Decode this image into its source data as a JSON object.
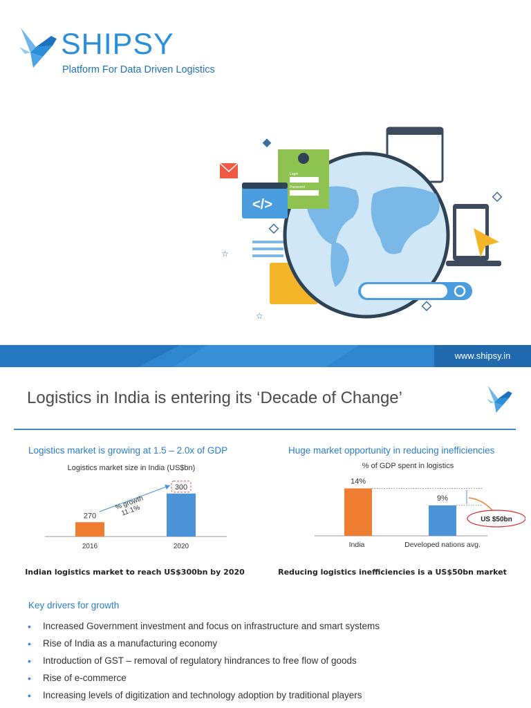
{
  "header": {
    "brand": "SHIPSY",
    "tagline": "Platform For Data Driven Logistics",
    "hero_icon": "world-map-logistics-illustration",
    "login_label": "Login",
    "password_label": "Password"
  },
  "banner": {
    "url": "www.shipsy.in"
  },
  "slide": {
    "title": "Logistics in India is entering its ‘Decade of Change’"
  },
  "left_panel": {
    "heading": "Logistics market is growing at 1.5 – 2.0x of GDP",
    "subtitle": "Logistics market size in India (US$bn)",
    "growth_label": "% growth",
    "growth_value": "11.1%",
    "caption": "Indian logistics market to reach US$300bn by 2020"
  },
  "right_panel": {
    "heading": "Huge market opportunity in reducing inefficiencies",
    "subtitle": "% of GDP spent in logistics",
    "callout": "US $50bn",
    "caption": "Reducing logistics inefficiencies is a US$50bn market"
  },
  "chart_data": [
    {
      "type": "bar",
      "categories": [
        "2016",
        "2020"
      ],
      "values": [
        270,
        300
      ],
      "value_labels": [
        "270",
        "300"
      ],
      "color": "#ee7d31",
      "colors": [
        "#ee7d31",
        "#4d93d8"
      ],
      "title": "Logistics market size in India (US$bn)"
    },
    {
      "type": "bar",
      "categories": [
        "India",
        "Developed nations avg."
      ],
      "values": [
        14,
        9
      ],
      "value_labels": [
        "14%",
        "9%"
      ],
      "colors": [
        "#ee7d31",
        "#4d93d8"
      ],
      "title": "% of GDP spent in logistics"
    }
  ],
  "drivers": {
    "heading": "Key drivers for growth",
    "bullet": "•",
    "items": [
      "Increased Government investment and focus on infrastructure and smart systems",
      "Rise of India as a manufacturing economy",
      "Introduction of GST – removal of regulatory hindrances to free flow of goods",
      "Rise of e-commerce",
      "Increasing levels of digitization and technology adoption by traditional players"
    ]
  }
}
